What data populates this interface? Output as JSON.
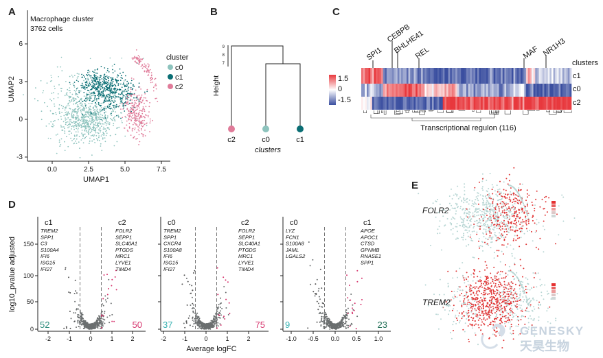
{
  "panel_letters": [
    "A",
    "B",
    "C",
    "D",
    "E"
  ],
  "panelA": {
    "title": "Macrophage cluster",
    "subtitle": "3762 cells",
    "xlabel": "UMAP1",
    "ylabel": "UMAP2",
    "x_ticks": [
      "0.0",
      "2.5",
      "5.0",
      "7.5"
    ],
    "y_ticks": [
      "6",
      "3",
      "0",
      "-3"
    ],
    "legend_title": "cluster",
    "legend": [
      {
        "label": "c0",
        "color": "#8dc3bd"
      },
      {
        "label": "c1",
        "color": "#0a6e74"
      },
      {
        "label": "c2",
        "color": "#e07b99"
      }
    ]
  },
  "panelB": {
    "ylabel": "Height",
    "y_ticks": [
      "9",
      "8",
      "7"
    ],
    "xlabel": "clusters",
    "leaves": [
      {
        "label": "c2",
        "color": "#e07b99"
      },
      {
        "label": "c0",
        "color": "#8dc3bd"
      },
      {
        "label": "c1",
        "color": "#0a6e74"
      }
    ]
  },
  "panelC": {
    "scale_values": [
      "1.5",
      "0",
      "-1.5"
    ],
    "gene_labels": [
      "SPI1",
      "CEBPB",
      "BHLHE41",
      "REL",
      "MAF",
      "NR1H3"
    ],
    "col_header": "clusters",
    "rows": [
      "c1",
      "c0",
      "c2"
    ],
    "xlabel": "Transcriptional regulon (116)",
    "colors": {
      "high": "#e8383d",
      "mid": "#ffffff",
      "low": "#3b4fa0"
    }
  },
  "panelD": {
    "ylabel": "log10_pvalue adjusted",
    "xlabel": "Average logFC",
    "y_ticks": [
      "150",
      "100",
      "50",
      "0"
    ],
    "plots": [
      {
        "left_label": "c1",
        "right_label": "c2",
        "left_genes": [
          "TREM2",
          "SPP1",
          "C3",
          "S100A4",
          "IFI6",
          "ISG15",
          "IFI27"
        ],
        "right_genes": [
          "FOLR2",
          "SEPP1",
          "SLC40A1",
          "PTGDS",
          "MRC1",
          "LYVE1",
          "TIMD4"
        ],
        "left_count": "52",
        "right_count": "50",
        "left_count_color": "#2a8a7a",
        "right_count_color": "#d6336c",
        "x_ticks": [
          "-2",
          "-1",
          "0",
          "1",
          "2"
        ]
      },
      {
        "left_label": "c0",
        "right_label": "c2",
        "left_genes": [
          "TREM2",
          "SPP1",
          "CXCR4",
          "S100A8",
          "IFI6",
          "ISG15",
          "IFI27"
        ],
        "right_genes": [
          "FOLR2",
          "SEPP1",
          "SLC40A1",
          "PTGDS",
          "MRC1",
          "LYVE1",
          "TIMD4"
        ],
        "left_count": "37",
        "right_count": "75",
        "left_count_color": "#36b1b1",
        "right_count_color": "#d6336c",
        "x_ticks": [
          "-2",
          "-1",
          "0",
          "1",
          "2"
        ]
      },
      {
        "left_label": "c0",
        "right_label": "c1",
        "left_genes": [
          "LYZ",
          "FCN1",
          "S100A8",
          "JAML",
          "LGALS2"
        ],
        "right_genes": [
          "APOE",
          "APOC1",
          "CTSD",
          "GPNMB",
          "RNASE1",
          "SPP1"
        ],
        "left_count": "9",
        "right_count": "23",
        "left_count_color": "#36b1b1",
        "right_count_color": "#1f6e55",
        "x_ticks": [
          "-1.0",
          "-0.5",
          "0.0",
          "0.5",
          "1.0"
        ]
      }
    ]
  },
  "panelE": {
    "genes": [
      "FOLR2",
      "TREM2"
    ]
  },
  "watermark": {
    "brand": "GENESKY",
    "chinese": "天昊生物"
  }
}
